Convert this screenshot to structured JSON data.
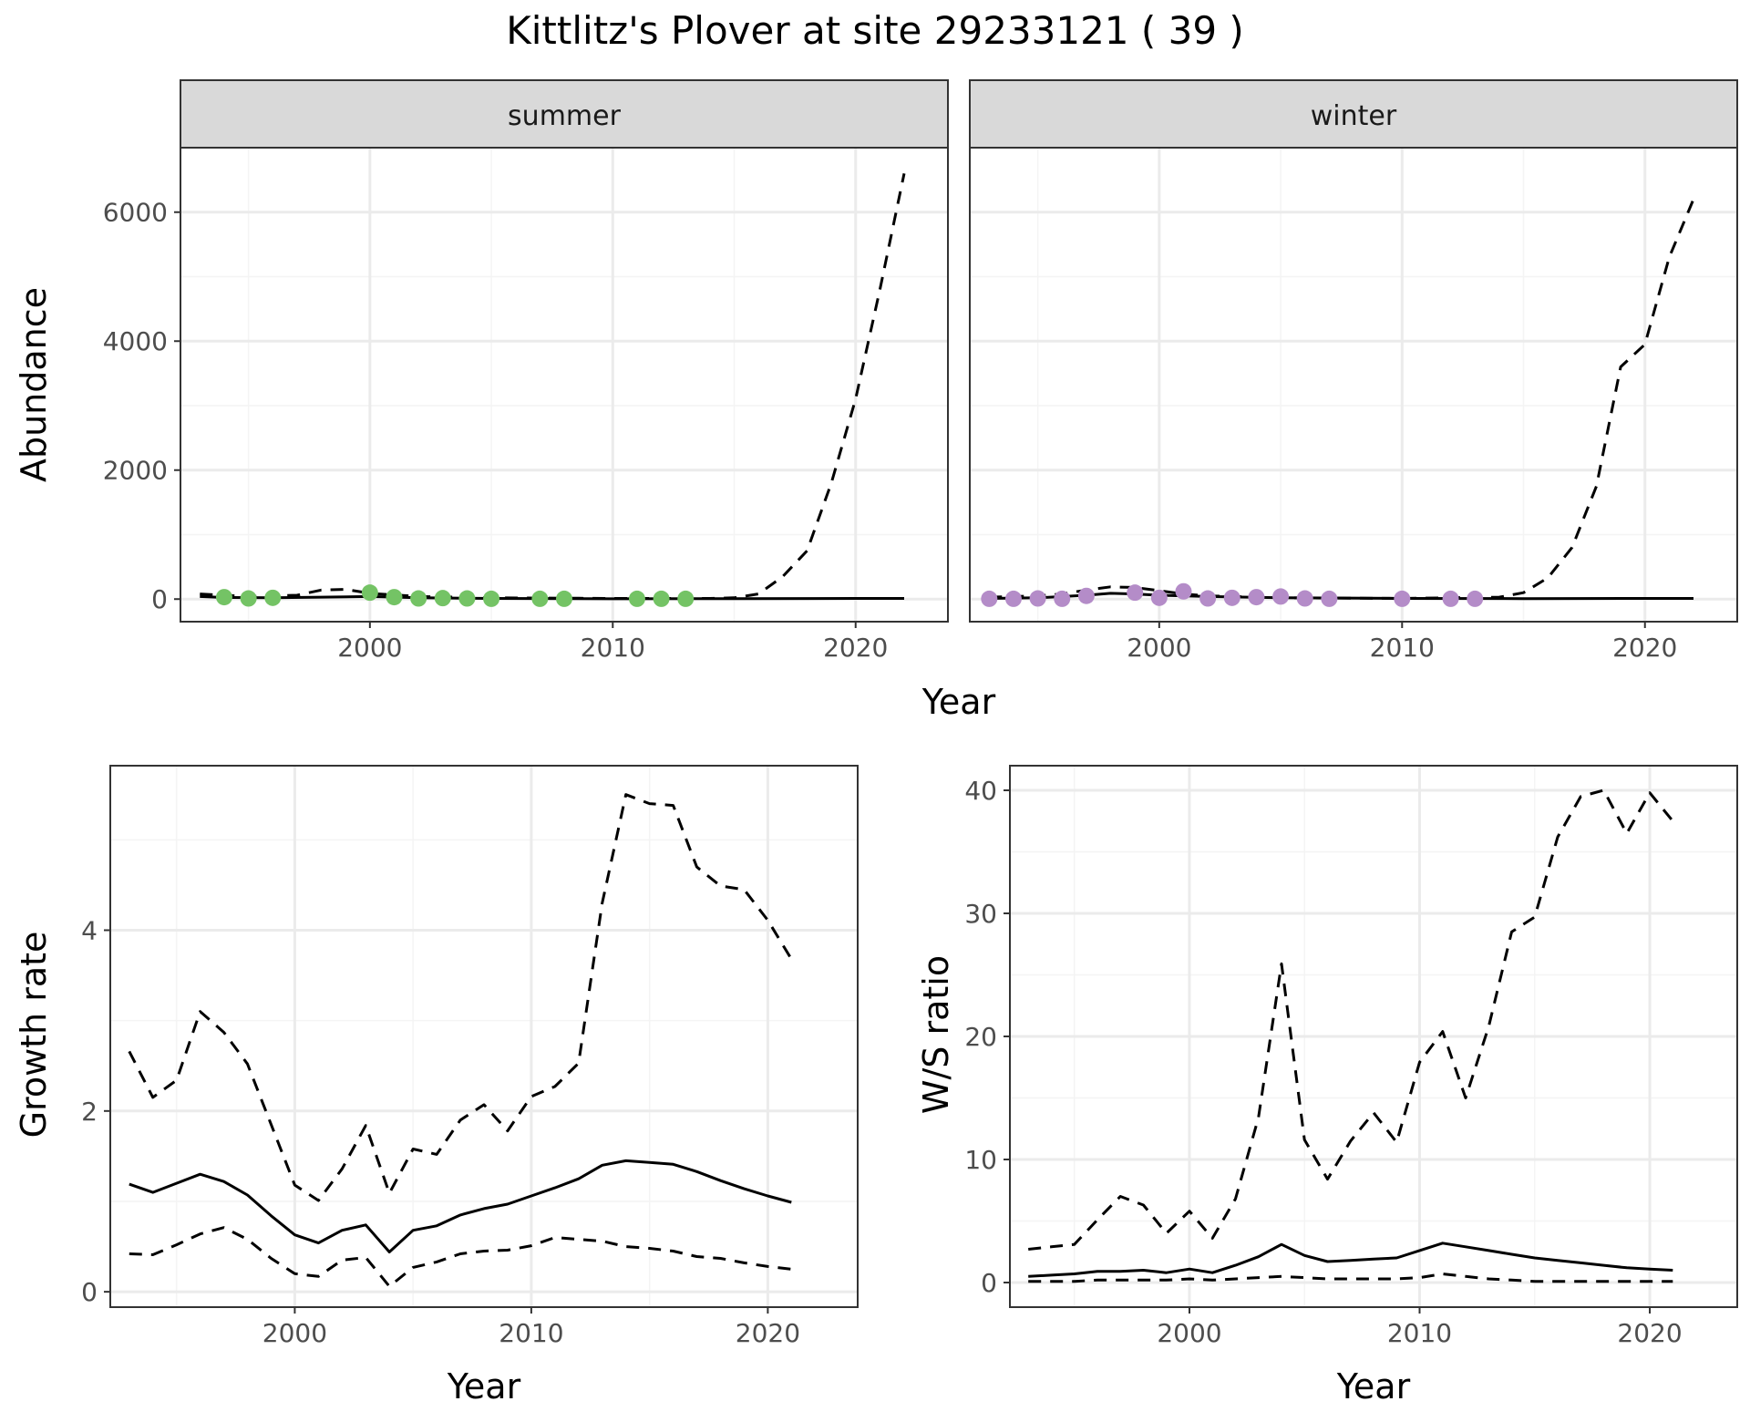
{
  "title": "Kittlitz's Plover at site 29233121 ( 39 )",
  "colors": {
    "summer_points": "#74c365",
    "winter_points": "#b48cc8",
    "line": "#000000",
    "grid_major": "#ebebeb",
    "grid_minor": "#f4f4f4",
    "strip_bg": "#d9d9d9"
  },
  "chart_data": [
    {
      "type": "line",
      "facet": "summer",
      "xlabel": "Year",
      "ylabel": "Abundance",
      "xlim": [
        1992.2,
        2023.8
      ],
      "ylim": [
        -350,
        7000
      ],
      "x_ticks": [
        2000,
        2010,
        2020
      ],
      "y_ticks": [
        0,
        2000,
        4000,
        6000
      ],
      "grid": true,
      "points": {
        "x": [
          1994,
          1995,
          1996,
          2000,
          2001,
          2002,
          2003,
          2004,
          2005,
          2007,
          2008,
          2011,
          2012,
          2013
        ],
        "y": [
          30,
          10,
          20,
          100,
          30,
          10,
          15,
          10,
          5,
          5,
          5,
          5,
          5,
          5
        ]
      },
      "series": [
        {
          "style": "solid",
          "x": [
            1993,
            1994,
            1996,
            1998,
            2000,
            2002,
            2005,
            2010,
            2015,
            2020,
            2022
          ],
          "y": [
            40,
            25,
            20,
            30,
            40,
            20,
            10,
            5,
            8,
            10,
            10
          ]
        },
        {
          "style": "dashed",
          "x": [
            1993,
            1995,
            1997,
            1998,
            1999,
            2000,
            2002,
            2005,
            2010,
            2014,
            2015,
            2016,
            2017,
            2018,
            2019,
            2020,
            2021,
            2022
          ],
          "y": [
            80,
            40,
            60,
            140,
            150,
            90,
            40,
            20,
            10,
            10,
            20,
            80,
            350,
            750,
            1800,
            3100,
            4800,
            6600
          ]
        }
      ]
    },
    {
      "type": "line",
      "facet": "winter",
      "xlabel": "Year",
      "ylabel": "Abundance",
      "xlim": [
        1992.2,
        2023.8
      ],
      "ylim": [
        -350,
        7000
      ],
      "x_ticks": [
        2000,
        2010,
        2020
      ],
      "y_ticks": [
        0,
        2000,
        4000,
        6000
      ],
      "grid": true,
      "points": {
        "x": [
          1993,
          1994,
          1995,
          1996,
          1997,
          1999,
          2000,
          2001,
          2002,
          2003,
          2004,
          2005,
          2006,
          2007,
          2010,
          2012,
          2013
        ],
        "y": [
          5,
          5,
          10,
          5,
          50,
          100,
          20,
          120,
          10,
          20,
          30,
          40,
          10,
          5,
          5,
          5,
          5
        ]
      },
      "series": [
        {
          "style": "solid",
          "x": [
            1993,
            1995,
            1997,
            1998,
            1999,
            2000,
            2002,
            2005,
            2010,
            2015,
            2020,
            2022
          ],
          "y": [
            10,
            20,
            60,
            90,
            80,
            60,
            40,
            20,
            10,
            8,
            10,
            10
          ]
        },
        {
          "style": "dashed",
          "x": [
            1993,
            1995,
            1996,
            1997,
            1998,
            1999,
            2000,
            2001,
            2002,
            2005,
            2010,
            2014,
            2015,
            2016,
            2017,
            2018,
            2019,
            2020,
            2021,
            2022
          ],
          "y": [
            30,
            50,
            80,
            140,
            190,
            180,
            130,
            80,
            50,
            20,
            10,
            30,
            100,
            330,
            800,
            1750,
            3600,
            3950,
            5300,
            6200
          ]
        }
      ]
    },
    {
      "type": "line",
      "xlabel": "Year",
      "ylabel": "Growth rate",
      "xlim": [
        1992.2,
        2023.8
      ],
      "ylim": [
        -0.17,
        5.82
      ],
      "x_ticks": [
        2000,
        2010,
        2020
      ],
      "y_ticks": [
        0,
        2,
        4
      ],
      "grid": true,
      "series": [
        {
          "style": "solid",
          "x": [
            1993,
            1994,
            1995,
            1996,
            1997,
            1998,
            1999,
            2000,
            2001,
            2002,
            2003,
            2004,
            2005,
            2006,
            2007,
            2008,
            2009,
            2010,
            2011,
            2012,
            2013,
            2014,
            2015,
            2016,
            2017,
            2018,
            2019,
            2020,
            2021
          ],
          "y": [
            1.19,
            1.1,
            1.2,
            1.3,
            1.22,
            1.07,
            0.84,
            0.63,
            0.54,
            0.68,
            0.74,
            0.44,
            0.68,
            0.73,
            0.85,
            0.92,
            0.97,
            1.06,
            1.15,
            1.25,
            1.4,
            1.45,
            1.43,
            1.41,
            1.33,
            1.23,
            1.14,
            1.06,
            0.99
          ]
        },
        {
          "style": "dashed",
          "x": [
            1993,
            1994,
            1995,
            1996,
            1997,
            1998,
            1999,
            2000,
            2001,
            2002,
            2003,
            2004,
            2005,
            2006,
            2007,
            2008,
            2009,
            2010,
            2011,
            2012,
            2013,
            2014,
            2015,
            2016,
            2017,
            2018,
            2019,
            2020,
            2021
          ],
          "y": [
            0.42,
            0.41,
            0.52,
            0.64,
            0.71,
            0.58,
            0.37,
            0.2,
            0.17,
            0.35,
            0.38,
            0.06,
            0.27,
            0.33,
            0.42,
            0.45,
            0.46,
            0.51,
            0.6,
            0.58,
            0.56,
            0.5,
            0.48,
            0.45,
            0.39,
            0.37,
            0.32,
            0.28,
            0.25
          ]
        },
        {
          "style": "dashed",
          "x": [
            1993,
            1994,
            1995,
            1996,
            1997,
            1998,
            1999,
            2000,
            2001,
            2002,
            2003,
            2004,
            2005,
            2006,
            2007,
            2008,
            2009,
            2010,
            2011,
            2012,
            2013,
            2014,
            2015,
            2016,
            2017,
            2018,
            2019,
            2020,
            2021
          ],
          "y": [
            2.66,
            2.15,
            2.34,
            3.1,
            2.87,
            2.52,
            1.85,
            1.18,
            1.01,
            1.36,
            1.84,
            1.09,
            1.58,
            1.52,
            1.9,
            2.07,
            1.78,
            2.16,
            2.27,
            2.53,
            4.3,
            5.5,
            5.4,
            5.38,
            4.7,
            4.49,
            4.45,
            4.11,
            3.68
          ]
        }
      ]
    },
    {
      "type": "line",
      "xlabel": "Year",
      "ylabel": "W/S ratio",
      "xlim": [
        1992.2,
        2023.8
      ],
      "ylim": [
        -2,
        42
      ],
      "x_ticks": [
        2000,
        2010,
        2020
      ],
      "y_ticks": [
        0,
        10,
        20,
        30,
        40
      ],
      "grid": true,
      "series": [
        {
          "style": "solid",
          "x": [
            1993,
            1994,
            1995,
            1996,
            1997,
            1998,
            1999,
            2000,
            2001,
            2002,
            2003,
            2004,
            2005,
            2006,
            2007,
            2008,
            2009,
            2010,
            2011,
            2012,
            2013,
            2014,
            2015,
            2016,
            2017,
            2018,
            2019,
            2020,
            2021
          ],
          "y": [
            0.5,
            0.6,
            0.7,
            0.9,
            0.9,
            1.0,
            0.8,
            1.1,
            0.8,
            1.4,
            2.1,
            3.1,
            2.2,
            1.7,
            1.8,
            1.9,
            2.0,
            2.6,
            3.2,
            2.9,
            2.6,
            2.3,
            2.0,
            1.8,
            1.6,
            1.4,
            1.2,
            1.1,
            1.0
          ]
        },
        {
          "style": "dashed",
          "x": [
            1993,
            1994,
            1995,
            1996,
            1997,
            1998,
            1999,
            2000,
            2001,
            2002,
            2003,
            2004,
            2005,
            2006,
            2007,
            2008,
            2009,
            2010,
            2011,
            2012,
            2013,
            2014,
            2015,
            2016,
            2017,
            2018,
            2019,
            2020,
            2021
          ],
          "y": [
            0.1,
            0.1,
            0.1,
            0.2,
            0.2,
            0.2,
            0.2,
            0.3,
            0.2,
            0.3,
            0.4,
            0.5,
            0.4,
            0.3,
            0.3,
            0.3,
            0.3,
            0.4,
            0.7,
            0.5,
            0.3,
            0.2,
            0.1,
            0.1,
            0.1,
            0.1,
            0.1,
            0.1,
            0.1
          ]
        },
        {
          "style": "dashed",
          "x": [
            1993,
            1994,
            1995,
            1996,
            1997,
            1998,
            1999,
            2000,
            2001,
            2002,
            2003,
            2004,
            2005,
            2006,
            2007,
            2008,
            2009,
            2010,
            2011,
            2012,
            2013,
            2014,
            2015,
            2016,
            2017,
            2018,
            2019,
            2020,
            2021
          ],
          "y": [
            2.7,
            2.9,
            3.1,
            5.1,
            7.0,
            6.3,
            4.0,
            5.8,
            3.6,
            6.8,
            13.4,
            25.9,
            11.6,
            8.4,
            11.5,
            13.8,
            11.4,
            17.9,
            20.4,
            15.0,
            20.8,
            28.5,
            29.7,
            36.2,
            39.5,
            40.0,
            36.5,
            39.8,
            37.5
          ]
        }
      ]
    }
  ]
}
